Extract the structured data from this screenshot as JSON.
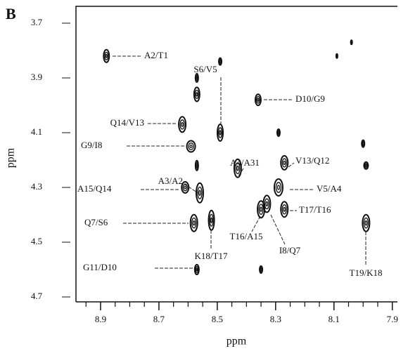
{
  "chart_data": {
    "type": "nmr-contour",
    "panel_label": "B",
    "x_label": "ppm",
    "y_label": "ppm",
    "xlim": [
      9.0,
      7.88
    ],
    "ylim": [
      3.64,
      4.72
    ],
    "xticks": [
      8.9,
      8.7,
      8.5,
      8.3,
      8.1,
      7.9
    ],
    "x_minor_ticks": [
      8.95,
      8.85,
      8.8,
      8.75,
      8.65,
      8.6,
      8.55,
      8.45,
      8.4,
      8.35,
      8.25,
      8.2,
      8.15,
      8.05,
      8.0,
      7.95
    ],
    "yticks": [
      3.7,
      3.9,
      4.1,
      4.3,
      4.5,
      4.7
    ],
    "color": "#111111",
    "peaks": {
      "x": [
        8.88,
        8.36,
        8.49,
        8.62,
        8.59,
        8.43,
        8.56,
        8.27,
        8.61,
        8.29,
        8.58,
        8.27,
        8.35,
        8.33,
        8.52,
        7.99,
        8.57,
        8.49,
        8.09,
        8.04,
        8.57,
        8.57,
        8.35,
        7.99,
        8.0,
        8.29,
        8.57
      ],
      "y": [
        3.82,
        3.98,
        4.1,
        4.07,
        4.15,
        4.23,
        4.32,
        4.21,
        4.3,
        4.3,
        4.43,
        4.38,
        4.38,
        4.36,
        4.42,
        4.43,
        4.6,
        3.84,
        3.82,
        3.77,
        3.9,
        3.96,
        4.6,
        4.22,
        4.14,
        4.1,
        4.22
      ],
      "labels": [
        "A2/T1",
        "D10/G9",
        "S6/V5",
        "Q14/V13",
        "G9/I8",
        "A4/A31",
        "A3/A2",
        "V13/Q12",
        "A15/Q14",
        "V5/A4",
        "Q7/S6",
        "T17/T16",
        "T16/A15",
        "I8/Q7",
        "K18/T17",
        "T19/K18",
        "G11/D10",
        null,
        null,
        null,
        null,
        null,
        null,
        null,
        null,
        null,
        null
      ]
    }
  }
}
